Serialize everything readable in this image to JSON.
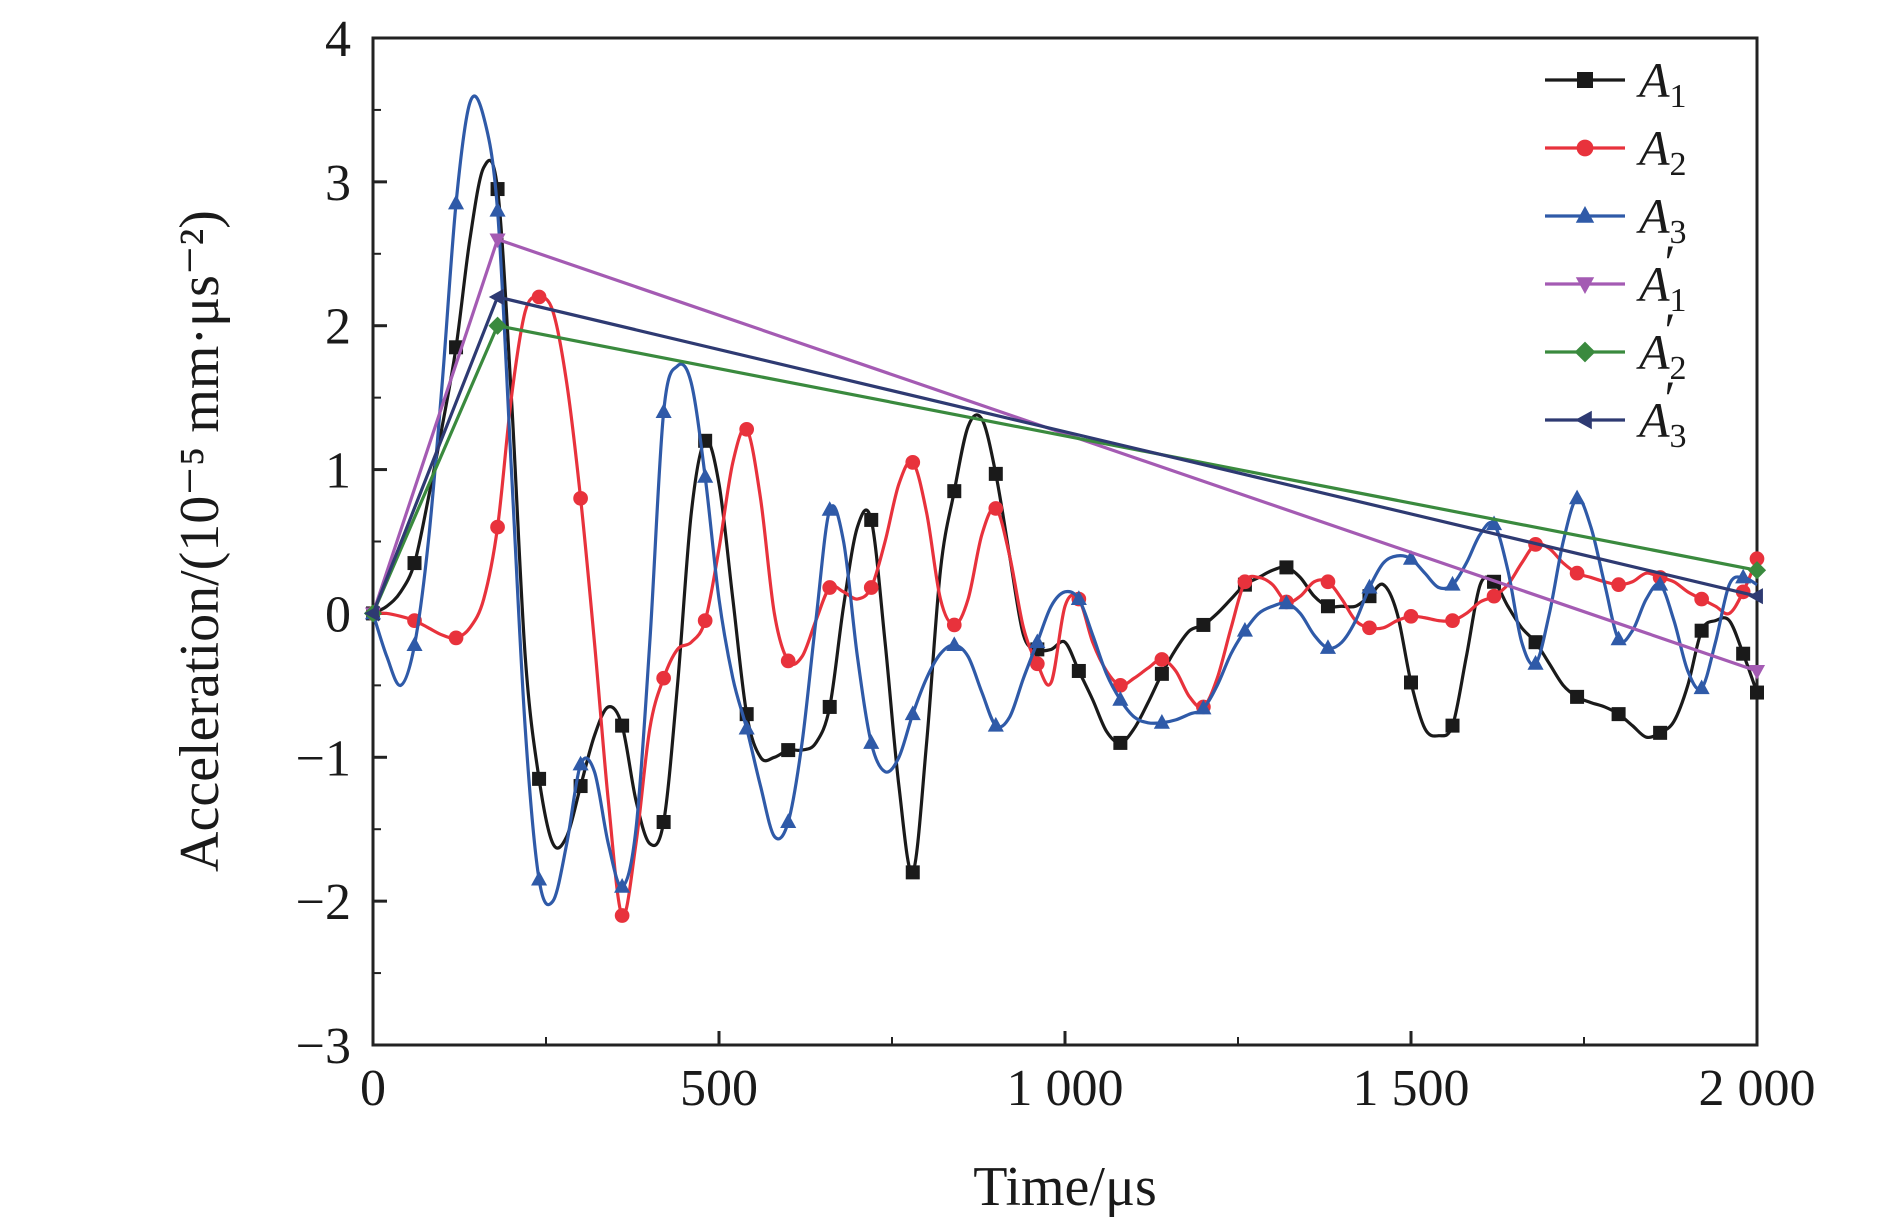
{
  "chart_data": {
    "type": "line",
    "title": "",
    "xlabel": "Time/μs",
    "ylabel": "Acceleration/(10⁻⁵ mm·μs⁻²)",
    "xlim": [
      0,
      2000
    ],
    "ylim": [
      -3,
      4
    ],
    "xticks": [
      0,
      500,
      1000,
      1500,
      2000
    ],
    "xtick_labels": [
      "0",
      "500",
      "1 000",
      "1 500",
      "2 000"
    ],
    "yticks": [
      -3,
      -2,
      -1,
      0,
      1,
      2,
      3,
      4
    ],
    "ytick_labels": [
      "−3",
      "−2",
      "−1",
      "0",
      "1",
      "2",
      "3",
      "4"
    ],
    "grid": false,
    "legend_position": "top-right",
    "series": [
      {
        "name": "A1",
        "base": "A",
        "sub": "1",
        "prime": false,
        "color": "#1a1a1a",
        "marker": "square",
        "smooth": true,
        "x": [
          0,
          20,
          40,
          60,
          80,
          100,
          120,
          140,
          160,
          180,
          200,
          220,
          240,
          260,
          280,
          300,
          320,
          340,
          360,
          380,
          400,
          420,
          440,
          460,
          480,
          500,
          520,
          540,
          560,
          580,
          600,
          620,
          640,
          660,
          680,
          700,
          720,
          740,
          760,
          780,
          800,
          820,
          840,
          860,
          880,
          900,
          920,
          940,
          960,
          980,
          1000,
          1020,
          1040,
          1060,
          1080,
          1100,
          1120,
          1140,
          1160,
          1180,
          1200,
          1220,
          1240,
          1260,
          1280,
          1300,
          1320,
          1340,
          1360,
          1380,
          1400,
          1420,
          1440,
          1460,
          1480,
          1500,
          1520,
          1540,
          1560,
          1580,
          1600,
          1620,
          1640,
          1660,
          1680,
          1700,
          1720,
          1740,
          1760,
          1780,
          1800,
          1820,
          1840,
          1860,
          1880,
          1900,
          1920,
          1940,
          1960,
          1980,
          2000
        ],
        "y": [
          0,
          0.05,
          0.15,
          0.35,
          0.8,
          1.3,
          1.85,
          2.6,
          3.1,
          2.95,
          1.5,
          -0.3,
          -1.15,
          -1.6,
          -1.55,
          -1.2,
          -0.85,
          -0.65,
          -0.78,
          -1.3,
          -1.6,
          -1.45,
          -0.5,
          0.7,
          1.2,
          0.9,
          0.1,
          -0.7,
          -1.0,
          -1.0,
          -0.95,
          -0.95,
          -0.9,
          -0.65,
          0.05,
          0.6,
          0.65,
          -0.2,
          -1.2,
          -1.8,
          -0.9,
          0.3,
          0.85,
          1.3,
          1.35,
          0.97,
          0.4,
          -0.15,
          -0.25,
          -0.25,
          -0.2,
          -0.4,
          -0.6,
          -0.82,
          -0.9,
          -0.8,
          -0.62,
          -0.42,
          -0.25,
          -0.12,
          -0.08,
          0.0,
          0.1,
          0.2,
          0.25,
          0.3,
          0.32,
          0.25,
          0.12,
          0.05,
          0.05,
          0.05,
          0.12,
          0.2,
          0.0,
          -0.48,
          -0.8,
          -0.85,
          -0.78,
          -0.3,
          0.2,
          0.22,
          0.05,
          -0.1,
          -0.2,
          -0.35,
          -0.5,
          -0.58,
          -0.62,
          -0.65,
          -0.7,
          -0.78,
          -0.86,
          -0.83,
          -0.75,
          -0.5,
          -0.12,
          -0.05,
          -0.05,
          -0.28,
          -0.55
        ],
        "marker_x": [
          0,
          60,
          120,
          180,
          240,
          300,
          360,
          420,
          480,
          540,
          600,
          660,
          720,
          780,
          840,
          900,
          960,
          1020,
          1080,
          1140,
          1200,
          1260,
          1320,
          1380,
          1440,
          1500,
          1560,
          1620,
          1680,
          1740,
          1800,
          1860,
          1920,
          1980,
          2000
        ]
      },
      {
        "name": "A2",
        "base": "A",
        "sub": "2",
        "prime": false,
        "color": "#e8323c",
        "marker": "circle",
        "smooth": true,
        "x": [
          0,
          20,
          40,
          60,
          80,
          100,
          120,
          140,
          160,
          180,
          200,
          220,
          240,
          260,
          280,
          300,
          320,
          340,
          360,
          380,
          400,
          420,
          440,
          460,
          480,
          500,
          520,
          540,
          560,
          580,
          600,
          620,
          640,
          660,
          680,
          700,
          720,
          740,
          760,
          780,
          800,
          820,
          840,
          860,
          880,
          900,
          920,
          940,
          960,
          980,
          1000,
          1020,
          1040,
          1060,
          1080,
          1100,
          1120,
          1140,
          1160,
          1180,
          1200,
          1220,
          1240,
          1260,
          1280,
          1300,
          1320,
          1340,
          1360,
          1380,
          1400,
          1420,
          1440,
          1460,
          1480,
          1500,
          1520,
          1540,
          1560,
          1580,
          1600,
          1620,
          1640,
          1660,
          1680,
          1700,
          1720,
          1740,
          1760,
          1780,
          1800,
          1820,
          1840,
          1860,
          1880,
          1900,
          1920,
          1940,
          1960,
          1980,
          2000
        ],
        "y": [
          0,
          0,
          -0.02,
          -0.05,
          -0.1,
          -0.15,
          -0.17,
          -0.1,
          0.1,
          0.6,
          1.5,
          2.1,
          2.2,
          2.1,
          1.6,
          0.8,
          -0.2,
          -1.3,
          -2.1,
          -1.6,
          -0.8,
          -0.45,
          -0.25,
          -0.2,
          -0.05,
          0.45,
          1.05,
          1.28,
          0.8,
          0.0,
          -0.33,
          -0.3,
          -0.05,
          0.18,
          0.15,
          0.1,
          0.18,
          0.5,
          0.9,
          1.05,
          0.7,
          0.1,
          -0.08,
          0.1,
          0.55,
          0.73,
          0.4,
          -0.1,
          -0.35,
          -0.48,
          0.05,
          0.1,
          -0.2,
          -0.4,
          -0.5,
          -0.45,
          -0.38,
          -0.32,
          -0.4,
          -0.58,
          -0.65,
          -0.45,
          -0.1,
          0.22,
          0.25,
          0.2,
          0.08,
          0.12,
          0.22,
          0.22,
          0.1,
          -0.05,
          -0.1,
          -0.1,
          -0.05,
          -0.02,
          -0.03,
          -0.05,
          -0.05,
          0.0,
          0.08,
          0.12,
          0.2,
          0.35,
          0.48,
          0.45,
          0.35,
          0.28,
          0.25,
          0.22,
          0.2,
          0.22,
          0.28,
          0.25,
          0.22,
          0.15,
          0.1,
          0.05,
          0.0,
          0.15,
          0.38
        ],
        "marker_x": [
          0,
          60,
          120,
          180,
          240,
          300,
          360,
          420,
          480,
          540,
          600,
          660,
          720,
          780,
          840,
          900,
          960,
          1020,
          1080,
          1140,
          1200,
          1260,
          1320,
          1380,
          1440,
          1500,
          1560,
          1620,
          1680,
          1740,
          1800,
          1860,
          1920,
          1980,
          2000
        ]
      },
      {
        "name": "A3",
        "base": "A",
        "sub": "3",
        "prime": false,
        "color": "#2f5aa8",
        "marker": "triangle-up",
        "smooth": true,
        "x": [
          0,
          20,
          40,
          60,
          80,
          100,
          120,
          140,
          160,
          180,
          200,
          220,
          240,
          260,
          280,
          300,
          320,
          340,
          360,
          380,
          400,
          420,
          440,
          460,
          480,
          500,
          520,
          540,
          560,
          580,
          600,
          620,
          640,
          660,
          680,
          700,
          720,
          740,
          760,
          780,
          800,
          820,
          840,
          860,
          880,
          900,
          920,
          940,
          960,
          980,
          1000,
          1020,
          1040,
          1060,
          1080,
          1100,
          1120,
          1140,
          1160,
          1180,
          1200,
          1220,
          1240,
          1260,
          1280,
          1300,
          1320,
          1340,
          1360,
          1380,
          1400,
          1420,
          1440,
          1460,
          1480,
          1500,
          1520,
          1540,
          1560,
          1580,
          1600,
          1620,
          1640,
          1660,
          1680,
          1700,
          1720,
          1740,
          1760,
          1780,
          1800,
          1820,
          1840,
          1860,
          1880,
          1900,
          1920,
          1940,
          1960,
          1980,
          2000
        ],
        "y": [
          0,
          -0.3,
          -0.5,
          -0.22,
          0.5,
          1.6,
          2.85,
          3.55,
          3.45,
          2.8,
          1.0,
          -0.8,
          -1.85,
          -2.0,
          -1.6,
          -1.05,
          -1.1,
          -1.6,
          -1.9,
          -1.5,
          -0.2,
          1.4,
          1.72,
          1.6,
          0.95,
          0.1,
          -0.45,
          -0.8,
          -1.2,
          -1.55,
          -1.45,
          -0.9,
          -0.05,
          0.72,
          0.5,
          -0.3,
          -0.9,
          -1.1,
          -1.0,
          -0.7,
          -0.45,
          -0.28,
          -0.22,
          -0.3,
          -0.55,
          -0.78,
          -0.72,
          -0.45,
          -0.2,
          0.05,
          0.15,
          0.1,
          -0.15,
          -0.42,
          -0.6,
          -0.72,
          -0.76,
          -0.76,
          -0.74,
          -0.7,
          -0.66,
          -0.5,
          -0.28,
          -0.12,
          0.0,
          0.05,
          0.07,
          0.0,
          -0.15,
          -0.24,
          -0.2,
          -0.05,
          0.18,
          0.35,
          0.4,
          0.38,
          0.28,
          0.18,
          0.2,
          0.35,
          0.55,
          0.62,
          0.3,
          -0.2,
          -0.35,
          0.0,
          0.5,
          0.8,
          0.6,
          0.2,
          -0.18,
          -0.12,
          0.1,
          0.2,
          -0.05,
          -0.4,
          -0.52,
          -0.2,
          0.2,
          0.25,
          0.2
        ],
        "marker_x": [
          0,
          60,
          120,
          180,
          240,
          300,
          360,
          420,
          480,
          540,
          600,
          660,
          720,
          780,
          840,
          900,
          960,
          1020,
          1080,
          1140,
          1200,
          1260,
          1320,
          1380,
          1440,
          1500,
          1560,
          1620,
          1680,
          1740,
          1800,
          1860,
          1920,
          1980
        ]
      },
      {
        "name": "A1′",
        "base": "A",
        "sub": "1",
        "prime": true,
        "color": "#a45bb3",
        "marker": "triangle-down",
        "smooth": false,
        "x": [
          0,
          180,
          2000
        ],
        "y": [
          0,
          2.6,
          -0.4
        ],
        "marker_x": [
          0,
          180,
          2000
        ]
      },
      {
        "name": "A2′",
        "base": "A",
        "sub": "2",
        "prime": true,
        "color": "#3a8a3e",
        "marker": "diamond",
        "smooth": false,
        "x": [
          0,
          180,
          2000
        ],
        "y": [
          0,
          2.0,
          0.3
        ],
        "marker_x": [
          0,
          180,
          2000
        ]
      },
      {
        "name": "A3′",
        "base": "A",
        "sub": "3",
        "prime": true,
        "color": "#2e3a72",
        "marker": "triangle-left",
        "smooth": false,
        "x": [
          0,
          180,
          2000
        ],
        "y": [
          0,
          2.2,
          0.12
        ],
        "marker_x": [
          0,
          180,
          2000
        ]
      }
    ]
  }
}
